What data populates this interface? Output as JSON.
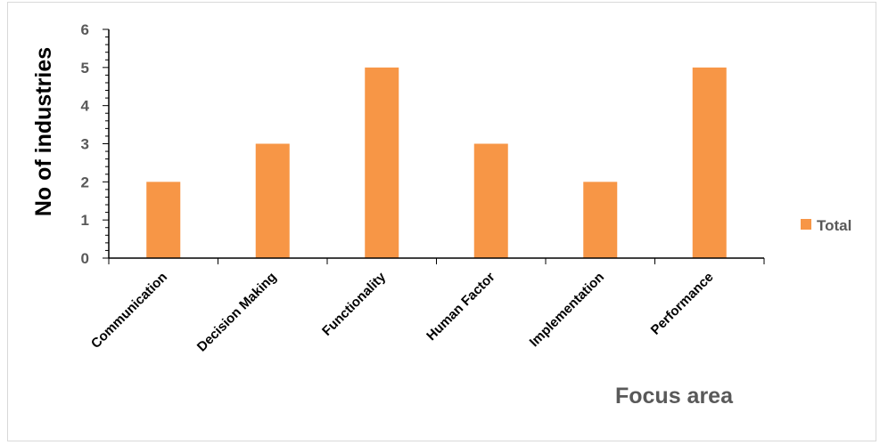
{
  "chart_data": {
    "type": "bar",
    "categories": [
      "Communication",
      "Decision Making",
      "Functionality",
      "Human Factor",
      "Implementation",
      "Performance"
    ],
    "series": [
      {
        "name": "Total",
        "values": [
          2,
          3,
          5,
          3,
          2,
          5
        ],
        "color": "#F79646"
      }
    ],
    "xlabel": "Focus area",
    "ylabel": "No of industries",
    "ylim": [
      0,
      6
    ],
    "yticks": [
      "0",
      "1",
      "2",
      "3",
      "4",
      "5",
      "6"
    ],
    "grid": false,
    "legend_position": "right"
  }
}
